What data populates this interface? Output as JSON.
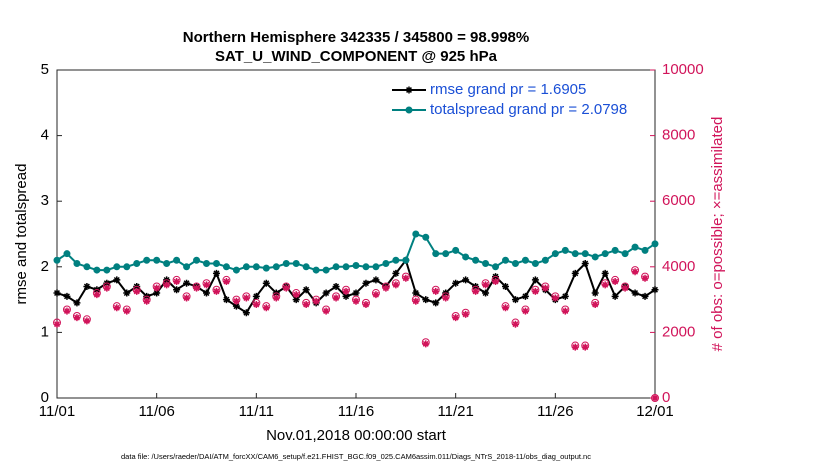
{
  "chart_data": {
    "type": "line",
    "title": "Northern Hemisphere 342335 / 345800 = 98.998%",
    "subtitle": "SAT_U_WIND_COMPONENT @ 925 hPa",
    "xlabel": "Nov.01,2018 00:00:00 start",
    "ylabel": "rmse and totalspread",
    "y2label": "# of obs: o=possible; ×=assimilated",
    "footnote": "data file: /Users/raeder/DAI/ATM_forcXX/CAM6_setup/f.e21.FHIST_BGC.f09_025.CAM6assim.011/Diags_NTrS_2018-11/obs_diag_output.nc",
    "xlim": [
      0,
      30
    ],
    "xticks": [
      {
        "value": 0,
        "label": "11/01"
      },
      {
        "value": 5,
        "label": "11/06"
      },
      {
        "value": 10,
        "label": "11/11"
      },
      {
        "value": 15,
        "label": "11/16"
      },
      {
        "value": 20,
        "label": "11/21"
      },
      {
        "value": 25,
        "label": "11/26"
      },
      {
        "value": 30,
        "label": "12/01"
      }
    ],
    "ylim": [
      0,
      5
    ],
    "yticks": [
      0,
      1,
      2,
      3,
      4,
      5
    ],
    "y2lim": [
      0,
      10000
    ],
    "y2ticks": [
      0,
      2000,
      4000,
      6000,
      8000,
      10000
    ],
    "legend": "upper right",
    "x": [
      0,
      0.5,
      1,
      1.5,
      2,
      2.5,
      3,
      3.5,
      4,
      4.5,
      5,
      5.5,
      6,
      6.5,
      7,
      7.5,
      8,
      8.5,
      9,
      9.5,
      10,
      10.5,
      11,
      11.5,
      12,
      12.5,
      13,
      13.5,
      14,
      14.5,
      15,
      15.5,
      16,
      16.5,
      17,
      17.5,
      18,
      18.5,
      19,
      19.5,
      20,
      20.5,
      21,
      21.5,
      22,
      22.5,
      23,
      23.5,
      24,
      24.5,
      25,
      25.5,
      26,
      26.5,
      27,
      27.5,
      28,
      28.5,
      29,
      29.5,
      30
    ],
    "series": [
      {
        "name": "rmse grand pr = 1.6905",
        "color": "#000000",
        "marker": "star",
        "values": [
          1.6,
          1.55,
          1.45,
          1.7,
          1.65,
          1.75,
          1.8,
          1.6,
          1.7,
          1.55,
          1.6,
          1.8,
          1.65,
          1.75,
          1.7,
          1.6,
          1.9,
          1.5,
          1.4,
          1.3,
          1.55,
          1.75,
          1.6,
          1.7,
          1.5,
          1.65,
          1.45,
          1.6,
          1.7,
          1.55,
          1.6,
          1.75,
          1.8,
          1.7,
          1.9,
          2.1,
          1.6,
          1.5,
          1.45,
          1.6,
          1.75,
          1.8,
          1.7,
          1.6,
          1.85,
          1.7,
          1.5,
          1.55,
          1.8,
          1.65,
          1.5,
          1.55,
          1.9,
          2.05,
          1.6,
          1.9,
          1.55,
          1.7,
          1.6,
          1.55,
          1.65
        ]
      },
      {
        "name": "totalspread grand pr = 2.0798",
        "color": "#008080",
        "marker": "circle",
        "values": [
          2.1,
          2.2,
          2.05,
          2.0,
          1.95,
          1.95,
          2.0,
          2.0,
          2.05,
          2.1,
          2.1,
          2.05,
          2.1,
          2.0,
          2.1,
          2.05,
          2.05,
          2.0,
          1.95,
          2.0,
          2.0,
          1.98,
          2.0,
          2.05,
          2.05,
          2.0,
          1.95,
          1.95,
          2.0,
          2.0,
          2.02,
          2.0,
          2.0,
          2.05,
          2.1,
          2.1,
          2.5,
          2.45,
          2.2,
          2.2,
          2.25,
          2.15,
          2.1,
          2.05,
          2.0,
          2.1,
          2.05,
          2.1,
          2.05,
          2.1,
          2.2,
          2.25,
          2.2,
          2.2,
          2.15,
          2.2,
          2.25,
          2.2,
          2.3,
          2.25,
          2.35
        ]
      },
      {
        "color": "#d1145a",
        "axis": "y2",
        "marker": "open-circle",
        "values": [
          2300,
          2700,
          2500,
          2400,
          3200,
          3400,
          2800,
          2700,
          3300,
          3000,
          3400,
          3500,
          3600,
          3100,
          3400,
          3500,
          3300,
          3600,
          3000,
          3100,
          2900,
          2800,
          3100,
          3400,
          3200,
          2900,
          3000,
          2700,
          3100,
          3300,
          3000,
          2900,
          3200,
          3400,
          3500,
          3700,
          3000,
          1700,
          3300,
          3100,
          2500,
          2600,
          3300,
          3500,
          3600,
          2800,
          2300,
          2700,
          3300,
          3400,
          3100,
          2700,
          1600,
          1600,
          2900,
          3500,
          3600,
          3400,
          3900,
          3700,
          0
        ]
      },
      {
        "color": "#d1145a",
        "axis": "y2",
        "marker": "star",
        "values": [
          2250,
          2650,
          2450,
          2350,
          3150,
          3350,
          2750,
          2650,
          3250,
          2950,
          3350,
          3450,
          3550,
          3050,
          3350,
          3450,
          3250,
          3550,
          2950,
          3050,
          2850,
          2750,
          3050,
          3350,
          3150,
          2850,
          2950,
          2650,
          3050,
          3250,
          2950,
          2850,
          3150,
          3350,
          3450,
          3650,
          2950,
          1650,
          3250,
          3050,
          2450,
          2550,
          3250,
          3450,
          3550,
          2750,
          2250,
          2650,
          3250,
          3350,
          3050,
          2650,
          1550,
          1550,
          2850,
          3450,
          3550,
          3350,
          3850,
          3650,
          0
        ]
      }
    ]
  }
}
